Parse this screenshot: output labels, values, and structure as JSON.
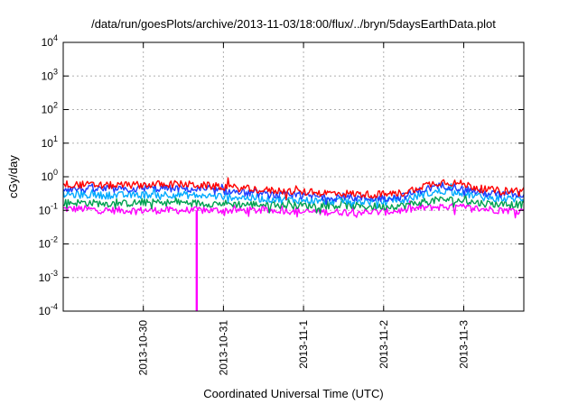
{
  "chart_data": {
    "type": "line",
    "title": "/data/run/goesPlots/archive/2013-11-03/18:00/flux/../bryn/5daysEarthData.plot",
    "xlabel": "Coordinated Universal Time (UTC)",
    "ylabel": "cGy/day",
    "yscale": "log",
    "ylim": [
      0.0001,
      10000
    ],
    "y_ticks": [
      {
        "value": 0.0001,
        "base": "10",
        "exp": "-4"
      },
      {
        "value": 0.001,
        "base": "10",
        "exp": "-3"
      },
      {
        "value": 0.01,
        "base": "10",
        "exp": "-2"
      },
      {
        "value": 0.1,
        "base": "10",
        "exp": "-1"
      },
      {
        "value": 1,
        "base": "10",
        "exp": "0"
      },
      {
        "value": 10,
        "base": "10",
        "exp": "1"
      },
      {
        "value": 100,
        "base": "10",
        "exp": "2"
      },
      {
        "value": 1000,
        "base": "10",
        "exp": "3"
      },
      {
        "value": 10000,
        "base": "10",
        "exp": "4"
      }
    ],
    "xlim": [
      "2013-10-29T00:00",
      "2013-11-03T18:00"
    ],
    "x_ticks": [
      {
        "value": "2013-10-30T00:00",
        "label": "2013-10-30"
      },
      {
        "value": "2013-10-31T00:00",
        "label": "2013-10-31"
      },
      {
        "value": "2013-11-01T00:00",
        "label": "2013-11-1"
      },
      {
        "value": "2013-11-02T00:00",
        "label": "2013-11-2"
      },
      {
        "value": "2013-11-03T00:00",
        "label": "2013-11-3"
      }
    ],
    "grid": true,
    "dropout": {
      "x": "2013-10-30T16:00",
      "series_index": 4
    },
    "x": [
      "2013-10-29T00:00",
      "2013-10-29T06:00",
      "2013-10-29T12:00",
      "2013-10-29T18:00",
      "2013-10-30T00:00",
      "2013-10-30T06:00",
      "2013-10-30T12:00",
      "2013-10-30T18:00",
      "2013-10-31T00:00",
      "2013-10-31T06:00",
      "2013-10-31T12:00",
      "2013-10-31T18:00",
      "2013-11-01T00:00",
      "2013-11-01T06:00",
      "2013-11-01T12:00",
      "2013-11-01T18:00",
      "2013-11-02T00:00",
      "2013-11-02T06:00",
      "2013-11-02T12:00",
      "2013-11-02T18:00",
      "2013-11-03T00:00",
      "2013-11-03T06:00",
      "2013-11-03T12:00",
      "2013-11-03T18:00"
    ],
    "series": [
      {
        "color": "#ff0000",
        "values": [
          0.6,
          0.58,
          0.55,
          0.56,
          0.58,
          0.6,
          0.6,
          0.55,
          0.5,
          0.45,
          0.4,
          0.38,
          0.35,
          0.33,
          0.32,
          0.3,
          0.3,
          0.33,
          0.55,
          0.72,
          0.6,
          0.42,
          0.38,
          0.4
        ]
      },
      {
        "color": "#1f3fff",
        "values": [
          0.45,
          0.43,
          0.42,
          0.42,
          0.44,
          0.45,
          0.44,
          0.4,
          0.38,
          0.34,
          0.3,
          0.28,
          0.27,
          0.25,
          0.24,
          0.23,
          0.23,
          0.26,
          0.42,
          0.55,
          0.45,
          0.32,
          0.3,
          0.3
        ]
      },
      {
        "color": "#00aaff",
        "values": [
          0.3,
          0.29,
          0.28,
          0.28,
          0.29,
          0.3,
          0.29,
          0.27,
          0.26,
          0.24,
          0.22,
          0.21,
          0.2,
          0.19,
          0.19,
          0.18,
          0.18,
          0.2,
          0.3,
          0.38,
          0.32,
          0.24,
          0.22,
          0.22
        ]
      },
      {
        "color": "#00a050",
        "values": [
          0.17,
          0.17,
          0.16,
          0.16,
          0.17,
          0.17,
          0.17,
          0.16,
          0.16,
          0.15,
          0.15,
          0.14,
          0.14,
          0.14,
          0.14,
          0.13,
          0.13,
          0.14,
          0.18,
          0.21,
          0.19,
          0.16,
          0.15,
          0.15
        ]
      },
      {
        "color": "#ff00ff",
        "values": [
          0.11,
          0.11,
          0.1,
          0.1,
          0.1,
          0.1,
          0.1,
          0.1,
          0.1,
          0.1,
          0.1,
          0.1,
          0.09,
          0.09,
          0.09,
          0.09,
          0.09,
          0.1,
          0.12,
          0.13,
          0.12,
          0.11,
          0.1,
          0.1
        ]
      }
    ]
  }
}
